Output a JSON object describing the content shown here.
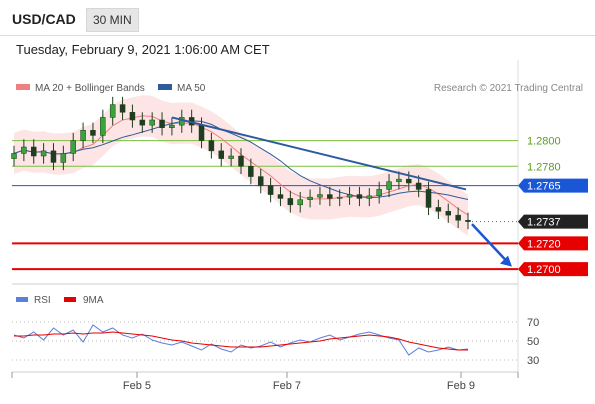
{
  "header": {
    "symbol": "USD/CAD",
    "timeframe": "30 MIN",
    "datetime": "Tuesday, February 9, 2021 1:06:00 AM CET"
  },
  "legend": {
    "ma20": "MA 20 + Bollinger Bands",
    "ma50": "MA 50",
    "credit": "Research © 2021 Trading Central"
  },
  "colors": {
    "ma20": "#f08080",
    "ma50": "#2e5b9c",
    "bollinger_fill": "#fde0e0",
    "support_red": "#e60000",
    "pivot_blue": "#1a57d6",
    "resistance_green": "#7bbf3e",
    "last_price": "#222222",
    "rsi": "#5b7fdc",
    "rsi_9ma": "#e60000"
  },
  "chart_data": [
    {
      "type": "candlestick",
      "symbol": "USD/CAD",
      "interval": "30 MIN",
      "x_ticks": [
        "Feb 5",
        "Feb 7",
        "Feb 9"
      ],
      "ylim": [
        1.269,
        1.283
      ],
      "levels": [
        {
          "label": "1.2800",
          "value": 1.28,
          "style": "resistance"
        },
        {
          "label": "1.2780",
          "value": 1.278,
          "style": "resistance"
        },
        {
          "label": "1.2765",
          "value": 1.2765,
          "style": "pivot"
        },
        {
          "label": "1.2737",
          "value": 1.2737,
          "style": "last"
        },
        {
          "label": "1.2720",
          "value": 1.272,
          "style": "support"
        },
        {
          "label": "1.2700",
          "value": 1.27,
          "style": "support"
        }
      ],
      "close_series": [
        1.279,
        1.2795,
        1.2788,
        1.2792,
        1.2783,
        1.279,
        1.28,
        1.2808,
        1.2804,
        1.2818,
        1.2828,
        1.2822,
        1.2816,
        1.2812,
        1.2816,
        1.281,
        1.2812,
        1.2818,
        1.2812,
        1.28,
        1.2792,
        1.2786,
        1.2788,
        1.278,
        1.2772,
        1.2765,
        1.2758,
        1.2755,
        1.275,
        1.2754,
        1.2756,
        1.2758,
        1.2755,
        1.2756,
        1.2758,
        1.2755,
        1.2757,
        1.2762,
        1.2768,
        1.277,
        1.2767,
        1.2762,
        1.2748,
        1.2745,
        1.2742,
        1.2738,
        1.2737
      ],
      "trendline": {
        "from": 1.2818,
        "to": 1.2762
      }
    },
    {
      "type": "line",
      "name": "RSI",
      "y_ticks": [
        "70",
        "50",
        "30"
      ],
      "ylim": [
        20,
        80
      ],
      "series": [
        {
          "name": "RSI",
          "values": [
            55,
            52,
            58,
            50,
            62,
            55,
            60,
            48,
            65,
            58,
            62,
            55,
            52,
            56,
            50,
            47,
            45,
            48,
            44,
            40,
            46,
            41,
            38,
            45,
            42,
            44,
            48,
            43,
            47,
            50,
            48,
            52,
            55,
            50,
            53,
            56,
            58,
            55,
            52,
            50,
            35,
            42,
            38,
            40,
            43,
            40,
            41
          ]
        },
        {
          "name": "9MA",
          "values": [
            54,
            54,
            55,
            55,
            56,
            56,
            57,
            56,
            57,
            57,
            58,
            57,
            56,
            55,
            54,
            52,
            50,
            49,
            47,
            46,
            45,
            44,
            43,
            43,
            43,
            43,
            44,
            45,
            46,
            47,
            48,
            49,
            51,
            52,
            53,
            54,
            55,
            54,
            53,
            51,
            48,
            46,
            44,
            42,
            41,
            40,
            40
          ]
        }
      ]
    }
  ]
}
